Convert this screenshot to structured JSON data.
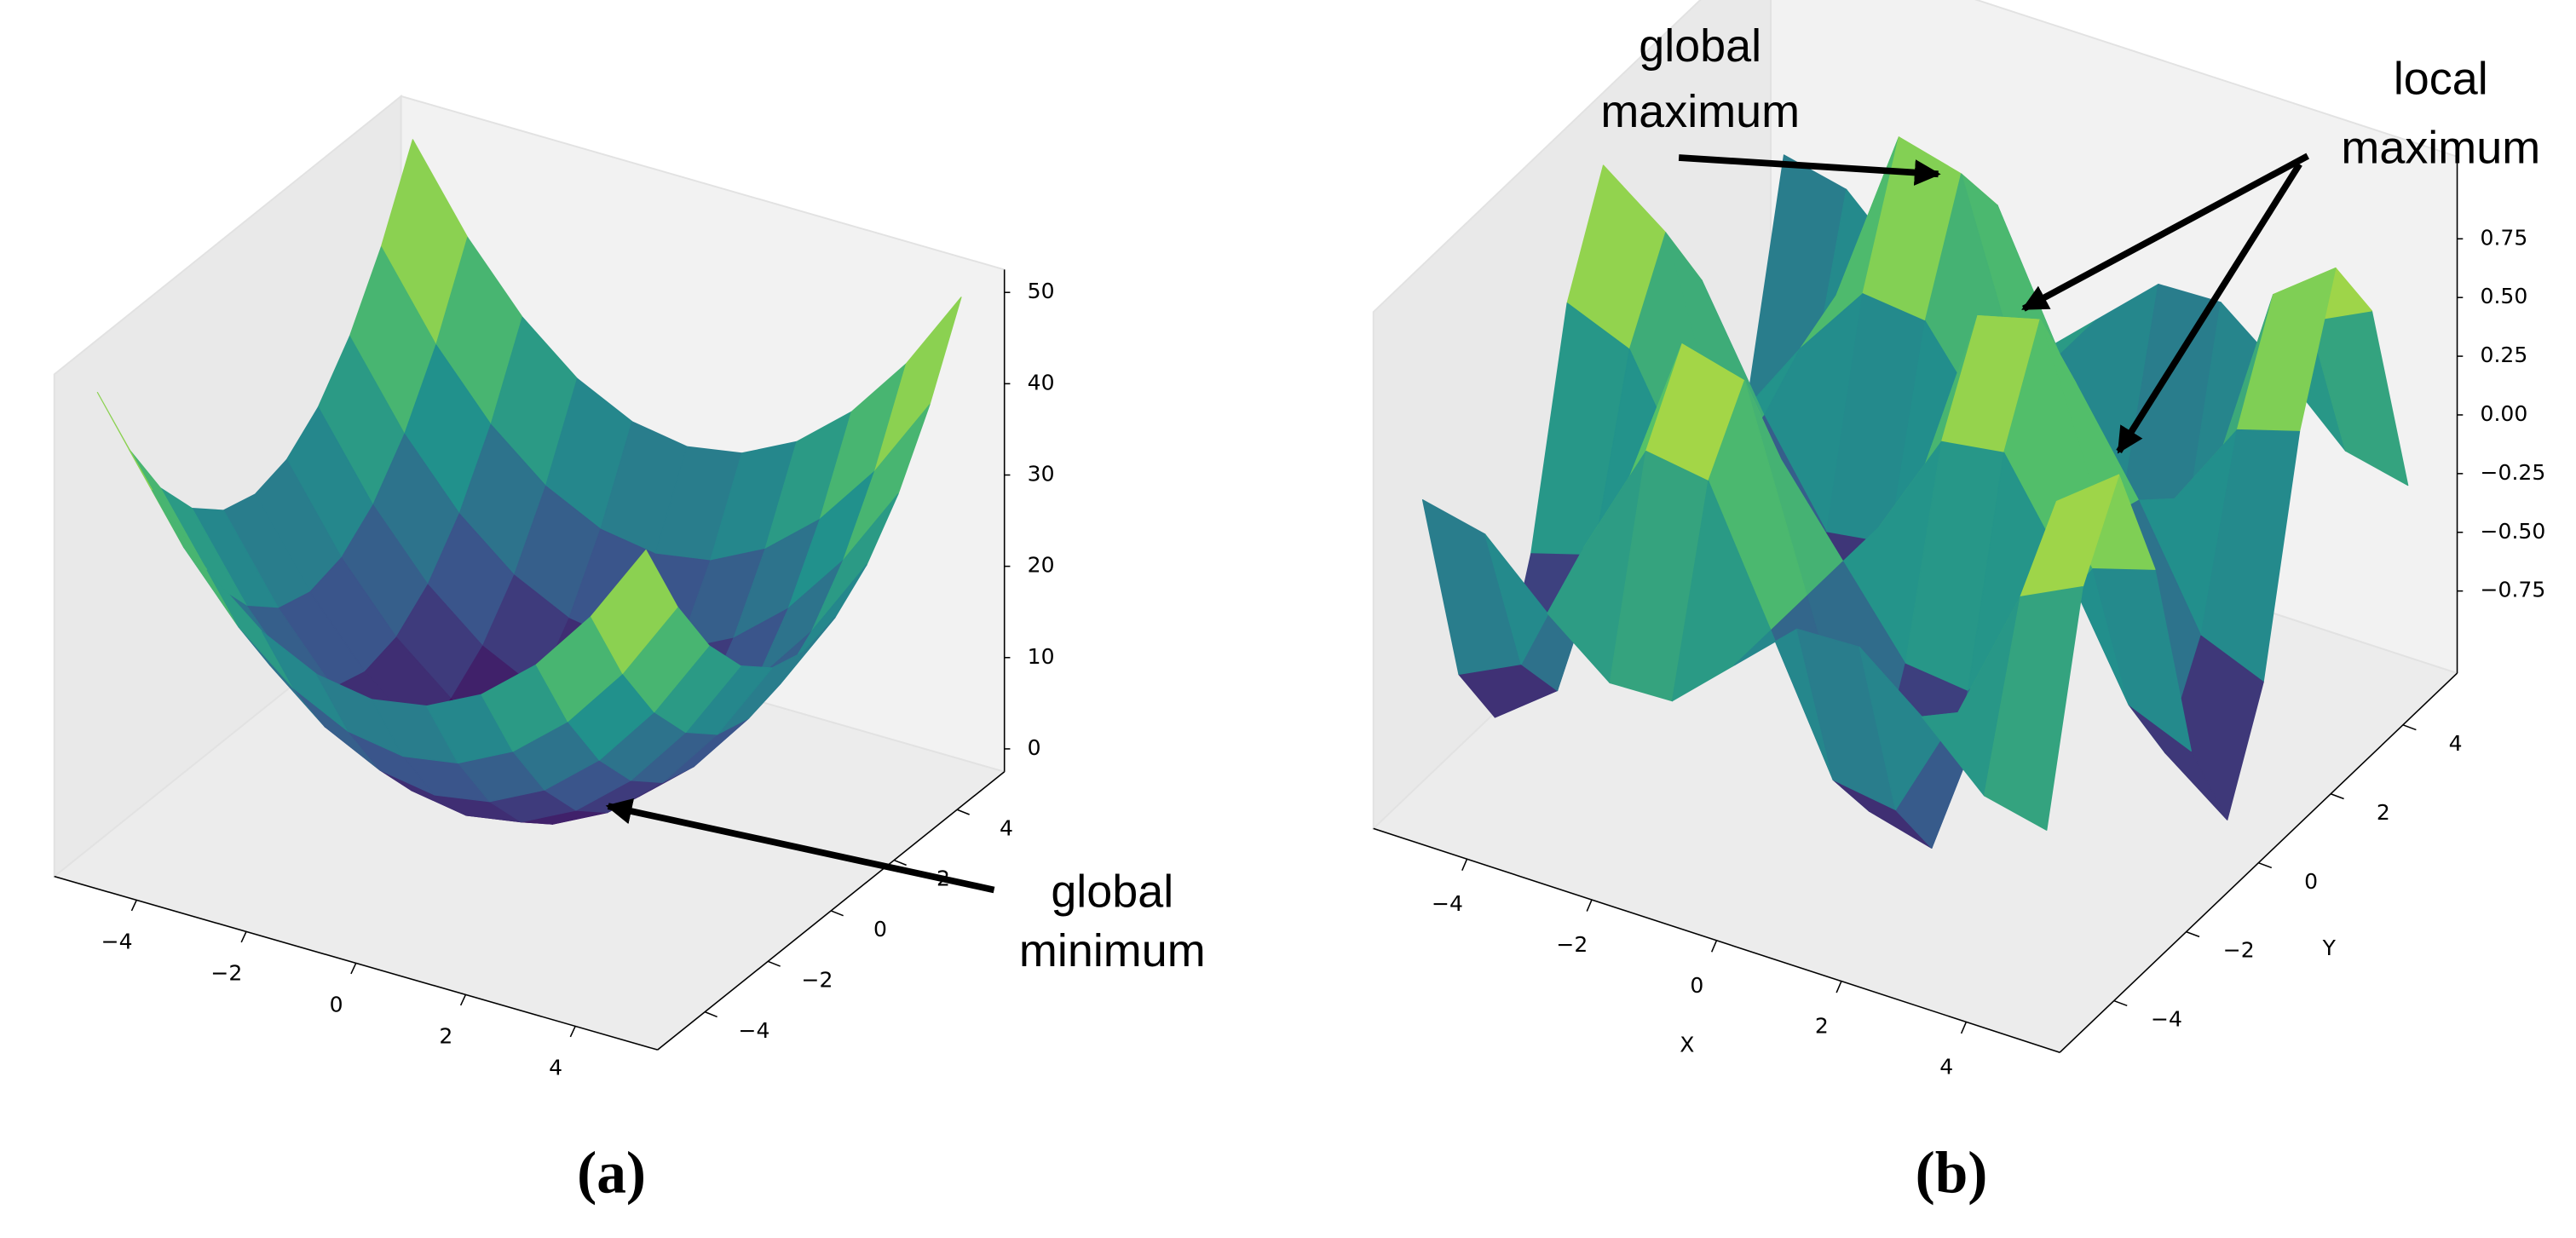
{
  "chart_data": [
    {
      "type": "surface3d",
      "title": "(a)",
      "colormap": "viridis",
      "x": [
        -5,
        -4,
        -3,
        -2,
        -1,
        0,
        1,
        2,
        3,
        4,
        5
      ],
      "y": [
        -5,
        -4,
        -3,
        -2,
        -1,
        0,
        1,
        2,
        3,
        4,
        5
      ],
      "z": [
        [
          50,
          41,
          34,
          29,
          26,
          25,
          26,
          29,
          34,
          41,
          50
        ],
        [
          41,
          32,
          25,
          20,
          17,
          16,
          17,
          20,
          25,
          32,
          41
        ],
        [
          34,
          25,
          18,
          13,
          10,
          9,
          10,
          13,
          18,
          25,
          34
        ],
        [
          29,
          20,
          13,
          8,
          5,
          4,
          5,
          8,
          13,
          20,
          29
        ],
        [
          26,
          17,
          10,
          5,
          2,
          1,
          2,
          5,
          10,
          17,
          26
        ],
        [
          25,
          16,
          9,
          4,
          1,
          0,
          1,
          4,
          9,
          16,
          25
        ],
        [
          26,
          17,
          10,
          5,
          2,
          1,
          2,
          5,
          10,
          17,
          26
        ],
        [
          29,
          20,
          13,
          8,
          5,
          4,
          5,
          8,
          13,
          20,
          29
        ],
        [
          34,
          25,
          18,
          13,
          10,
          9,
          10,
          13,
          18,
          25,
          34
        ],
        [
          41,
          32,
          25,
          20,
          17,
          16,
          17,
          20,
          25,
          32,
          41
        ],
        [
          50,
          41,
          34,
          29,
          26,
          25,
          26,
          29,
          34,
          41,
          50
        ]
      ],
      "xlim": [
        -5,
        5
      ],
      "ylim": [
        -5,
        5
      ],
      "zlim": [
        0,
        50
      ],
      "xticks": [
        {
          "value": -4,
          "label": "−4"
        },
        {
          "value": -2,
          "label": "−2"
        },
        0,
        2,
        4
      ],
      "yticks": [
        {
          "value": -4,
          "label": "−4"
        },
        {
          "value": -2,
          "label": "−2"
        },
        0,
        2,
        4
      ],
      "zticks": [
        0,
        10,
        20,
        30,
        40,
        50
      ],
      "annotations": [
        {
          "lines": [
            "global",
            "minimum"
          ]
        }
      ]
    },
    {
      "type": "surface3d",
      "title": "(b)",
      "colormap": "viridis",
      "xlabel": "X",
      "ylabel": "Y",
      "x": [
        -5,
        -4,
        -3,
        -2,
        -1,
        0,
        1,
        2,
        3,
        4,
        5
      ],
      "y": [
        -5,
        -4,
        -3,
        -2,
        -1,
        0,
        1,
        2,
        3,
        4,
        5
      ],
      "z": [
        [
          0.27,
          -0.62,
          -0.95,
          -0.4,
          0.52,
          0.96,
          0.52,
          -0.4,
          -0.95,
          -0.62,
          0.27
        ],
        [
          0.21,
          -0.49,
          -0.75,
          -0.32,
          0.41,
          0.76,
          0.41,
          -0.32,
          -0.75,
          -0.49,
          0.21
        ],
        [
          -0.04,
          0.09,
          0.14,
          0.06,
          -0.08,
          -0.14,
          -0.08,
          0.06,
          0.14,
          0.09,
          -0.04
        ],
        [
          -0.25,
          0.59,
          0.9,
          0.38,
          -0.49,
          -0.91,
          -0.49,
          0.38,
          0.9,
          0.59,
          -0.25
        ],
        [
          -0.24,
          0.55,
          0.83,
          0.35,
          -0.45,
          -0.84,
          -0.45,
          0.35,
          0.83,
          0.55,
          -0.24
        ],
        [
          0,
          0,
          0,
          0,
          0,
          0,
          0,
          0,
          0,
          0,
          0
        ],
        [
          0.24,
          -0.55,
          -0.83,
          -0.35,
          0.45,
          0.84,
          0.45,
          -0.35,
          -0.83,
          -0.55,
          0.24
        ],
        [
          0.25,
          -0.59,
          -0.9,
          -0.38,
          0.49,
          0.91,
          0.49,
          -0.38,
          -0.9,
          -0.59,
          0.25
        ],
        [
          0.04,
          -0.09,
          -0.14,
          -0.06,
          0.08,
          0.14,
          0.08,
          -0.06,
          -0.14,
          -0.09,
          0.04
        ],
        [
          -0.21,
          0.49,
          0.75,
          0.32,
          -0.41,
          -0.76,
          -0.41,
          0.32,
          0.75,
          0.49,
          -0.21
        ],
        [
          -0.27,
          0.62,
          0.95,
          0.4,
          -0.52,
          -0.96,
          -0.52,
          0.4,
          0.95,
          0.62,
          -0.27
        ]
      ],
      "xlim": [
        -5,
        5
      ],
      "ylim": [
        -5,
        5
      ],
      "zlim": [
        -1,
        1
      ],
      "xticks": [
        {
          "value": -4,
          "label": "−4"
        },
        {
          "value": -2,
          "label": "−2"
        },
        0,
        2,
        4
      ],
      "yticks": [
        {
          "value": -4,
          "label": "−4"
        },
        {
          "value": -2,
          "label": "−2"
        },
        0,
        2,
        4
      ],
      "zticks": [
        {
          "value": -0.75,
          "label": "−0.75"
        },
        {
          "value": -0.5,
          "label": "−0.50"
        },
        {
          "value": -0.25,
          "label": "−0.25"
        },
        {
          "value": 0,
          "label": "0.00"
        },
        0.25,
        {
          "value": 0.5,
          "label": "0.50"
        },
        0.75
      ],
      "annotations": [
        {
          "lines": [
            "global",
            "maximum"
          ]
        },
        {
          "lines": [
            "local",
            "maximum"
          ]
        }
      ]
    }
  ]
}
